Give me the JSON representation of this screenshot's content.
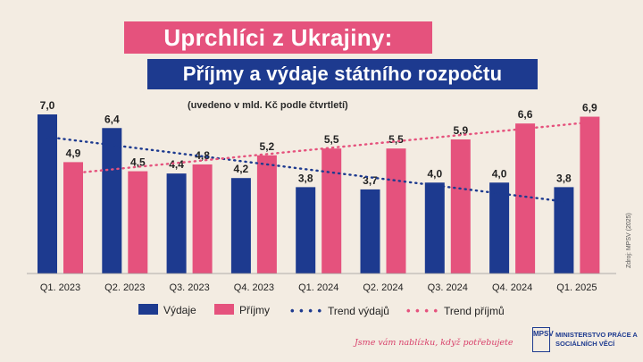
{
  "title": "Uprchlíci z Ukrajiny:",
  "subtitle": "Příjmy a výdaje státního rozpočtu",
  "note": "(uvedeno v mld. Kč podle čtvrtletí)",
  "source": "Zdroj: MPSV (2025)",
  "slogan": "Jsme vám nablízku, když potřebujete",
  "ministry": {
    "logo_text": "MPSV",
    "name": "MINISTERSTVO PRÁCE A SOCIÁLNÍCH VĚCÍ"
  },
  "colors": {
    "vydaje": "#1d3a8f",
    "prijmy": "#e5527d"
  },
  "legend": {
    "vydaje": "Výdaje",
    "prijmy": "Příjmy",
    "trend_vydaju": "Trend výdajů",
    "trend_prijmu": "Trend příjmů"
  },
  "chart_data": {
    "type": "bar",
    "categories": [
      "Q1. 2023",
      "Q2. 2023",
      "Q3. 2023",
      "Q4. 2023",
      "Q1. 2024",
      "Q2. 2024",
      "Q3. 2024",
      "Q4. 2024",
      "Q1. 2025"
    ],
    "series": [
      {
        "name": "Výdaje",
        "values": [
          7.0,
          6.4,
          4.4,
          4.2,
          3.8,
          3.7,
          4.0,
          4.0,
          3.8
        ],
        "labels": [
          "7,0",
          "6,4",
          "4,4",
          "4,2",
          "3,8",
          "3,7",
          "4,0",
          "4,0",
          "3,8"
        ]
      },
      {
        "name": "Příjmy",
        "values": [
          4.9,
          4.5,
          4.8,
          5.2,
          5.5,
          5.5,
          5.9,
          6.6,
          6.9
        ],
        "labels": [
          "4,9",
          "4,5",
          "4,8",
          "5,2",
          "5,5",
          "5,5",
          "5,9",
          "6,6",
          "6,9"
        ]
      }
    ],
    "trends": [
      {
        "name": "Trend výdajů",
        "style": "dotted"
      },
      {
        "name": "Trend příjmů",
        "style": "dotted"
      }
    ],
    "ylim": [
      0,
      7
    ],
    "grid": false,
    "legend_position": "bottom"
  }
}
